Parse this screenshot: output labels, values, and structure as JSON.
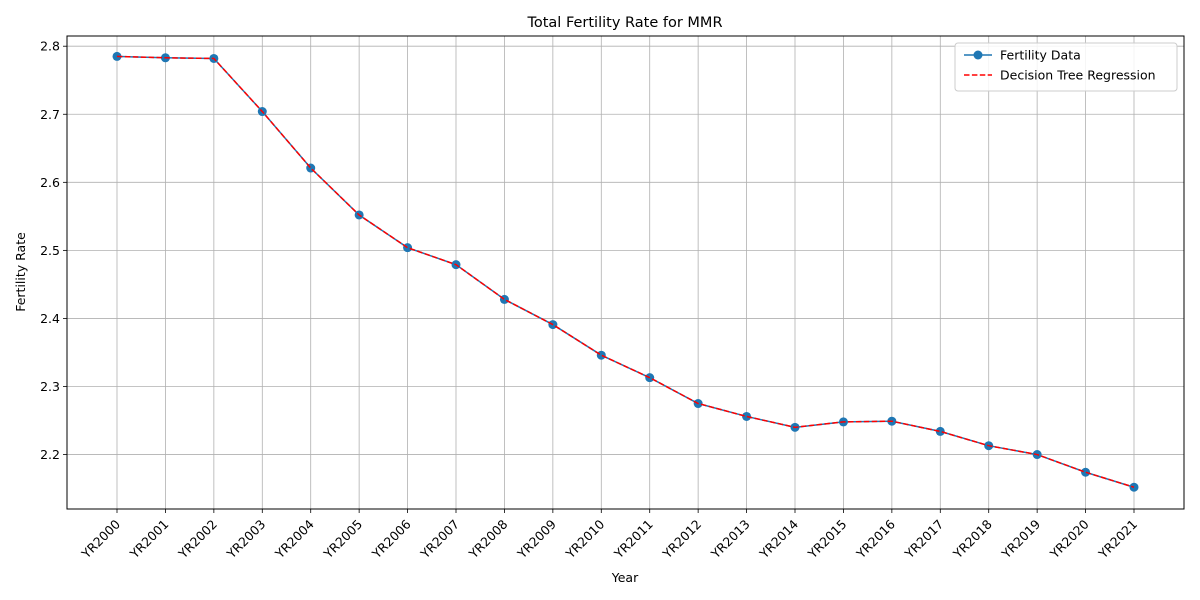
{
  "chart_data": {
    "type": "line",
    "title": "Total Fertility Rate for MMR",
    "xlabel": "Year",
    "ylabel": "Fertility Rate",
    "categories": [
      "YR2000",
      "YR2001",
      "YR2002",
      "YR2003",
      "YR2004",
      "YR2005",
      "YR2006",
      "YR2007",
      "YR2008",
      "YR2009",
      "YR2010",
      "YR2011",
      "YR2012",
      "YR2013",
      "YR2014",
      "YR2015",
      "YR2016",
      "YR2017",
      "YR2018",
      "YR2019",
      "YR2020",
      "YR2021"
    ],
    "ylim": [
      2.12,
      2.815
    ],
    "yticks": [
      2.2,
      2.3,
      2.4,
      2.5,
      2.6,
      2.7,
      2.8
    ],
    "grid": true,
    "legend_position": "top-right",
    "series": [
      {
        "name": "Fertility Data",
        "style": "solid-with-markers",
        "color": "#1f77b4",
        "values": [
          2.785,
          2.783,
          2.782,
          2.704,
          2.621,
          2.552,
          2.504,
          2.479,
          2.428,
          2.391,
          2.346,
          2.313,
          2.275,
          2.256,
          2.24,
          2.248,
          2.249,
          2.234,
          2.213,
          2.2,
          2.174,
          2.152
        ]
      },
      {
        "name": "Decision Tree Regression",
        "style": "dashed",
        "color": "#ff0000",
        "values": [
          2.785,
          2.783,
          2.782,
          2.704,
          2.621,
          2.552,
          2.504,
          2.479,
          2.428,
          2.391,
          2.346,
          2.313,
          2.275,
          2.256,
          2.24,
          2.248,
          2.249,
          2.234,
          2.213,
          2.2,
          2.174,
          2.152
        ]
      }
    ]
  }
}
